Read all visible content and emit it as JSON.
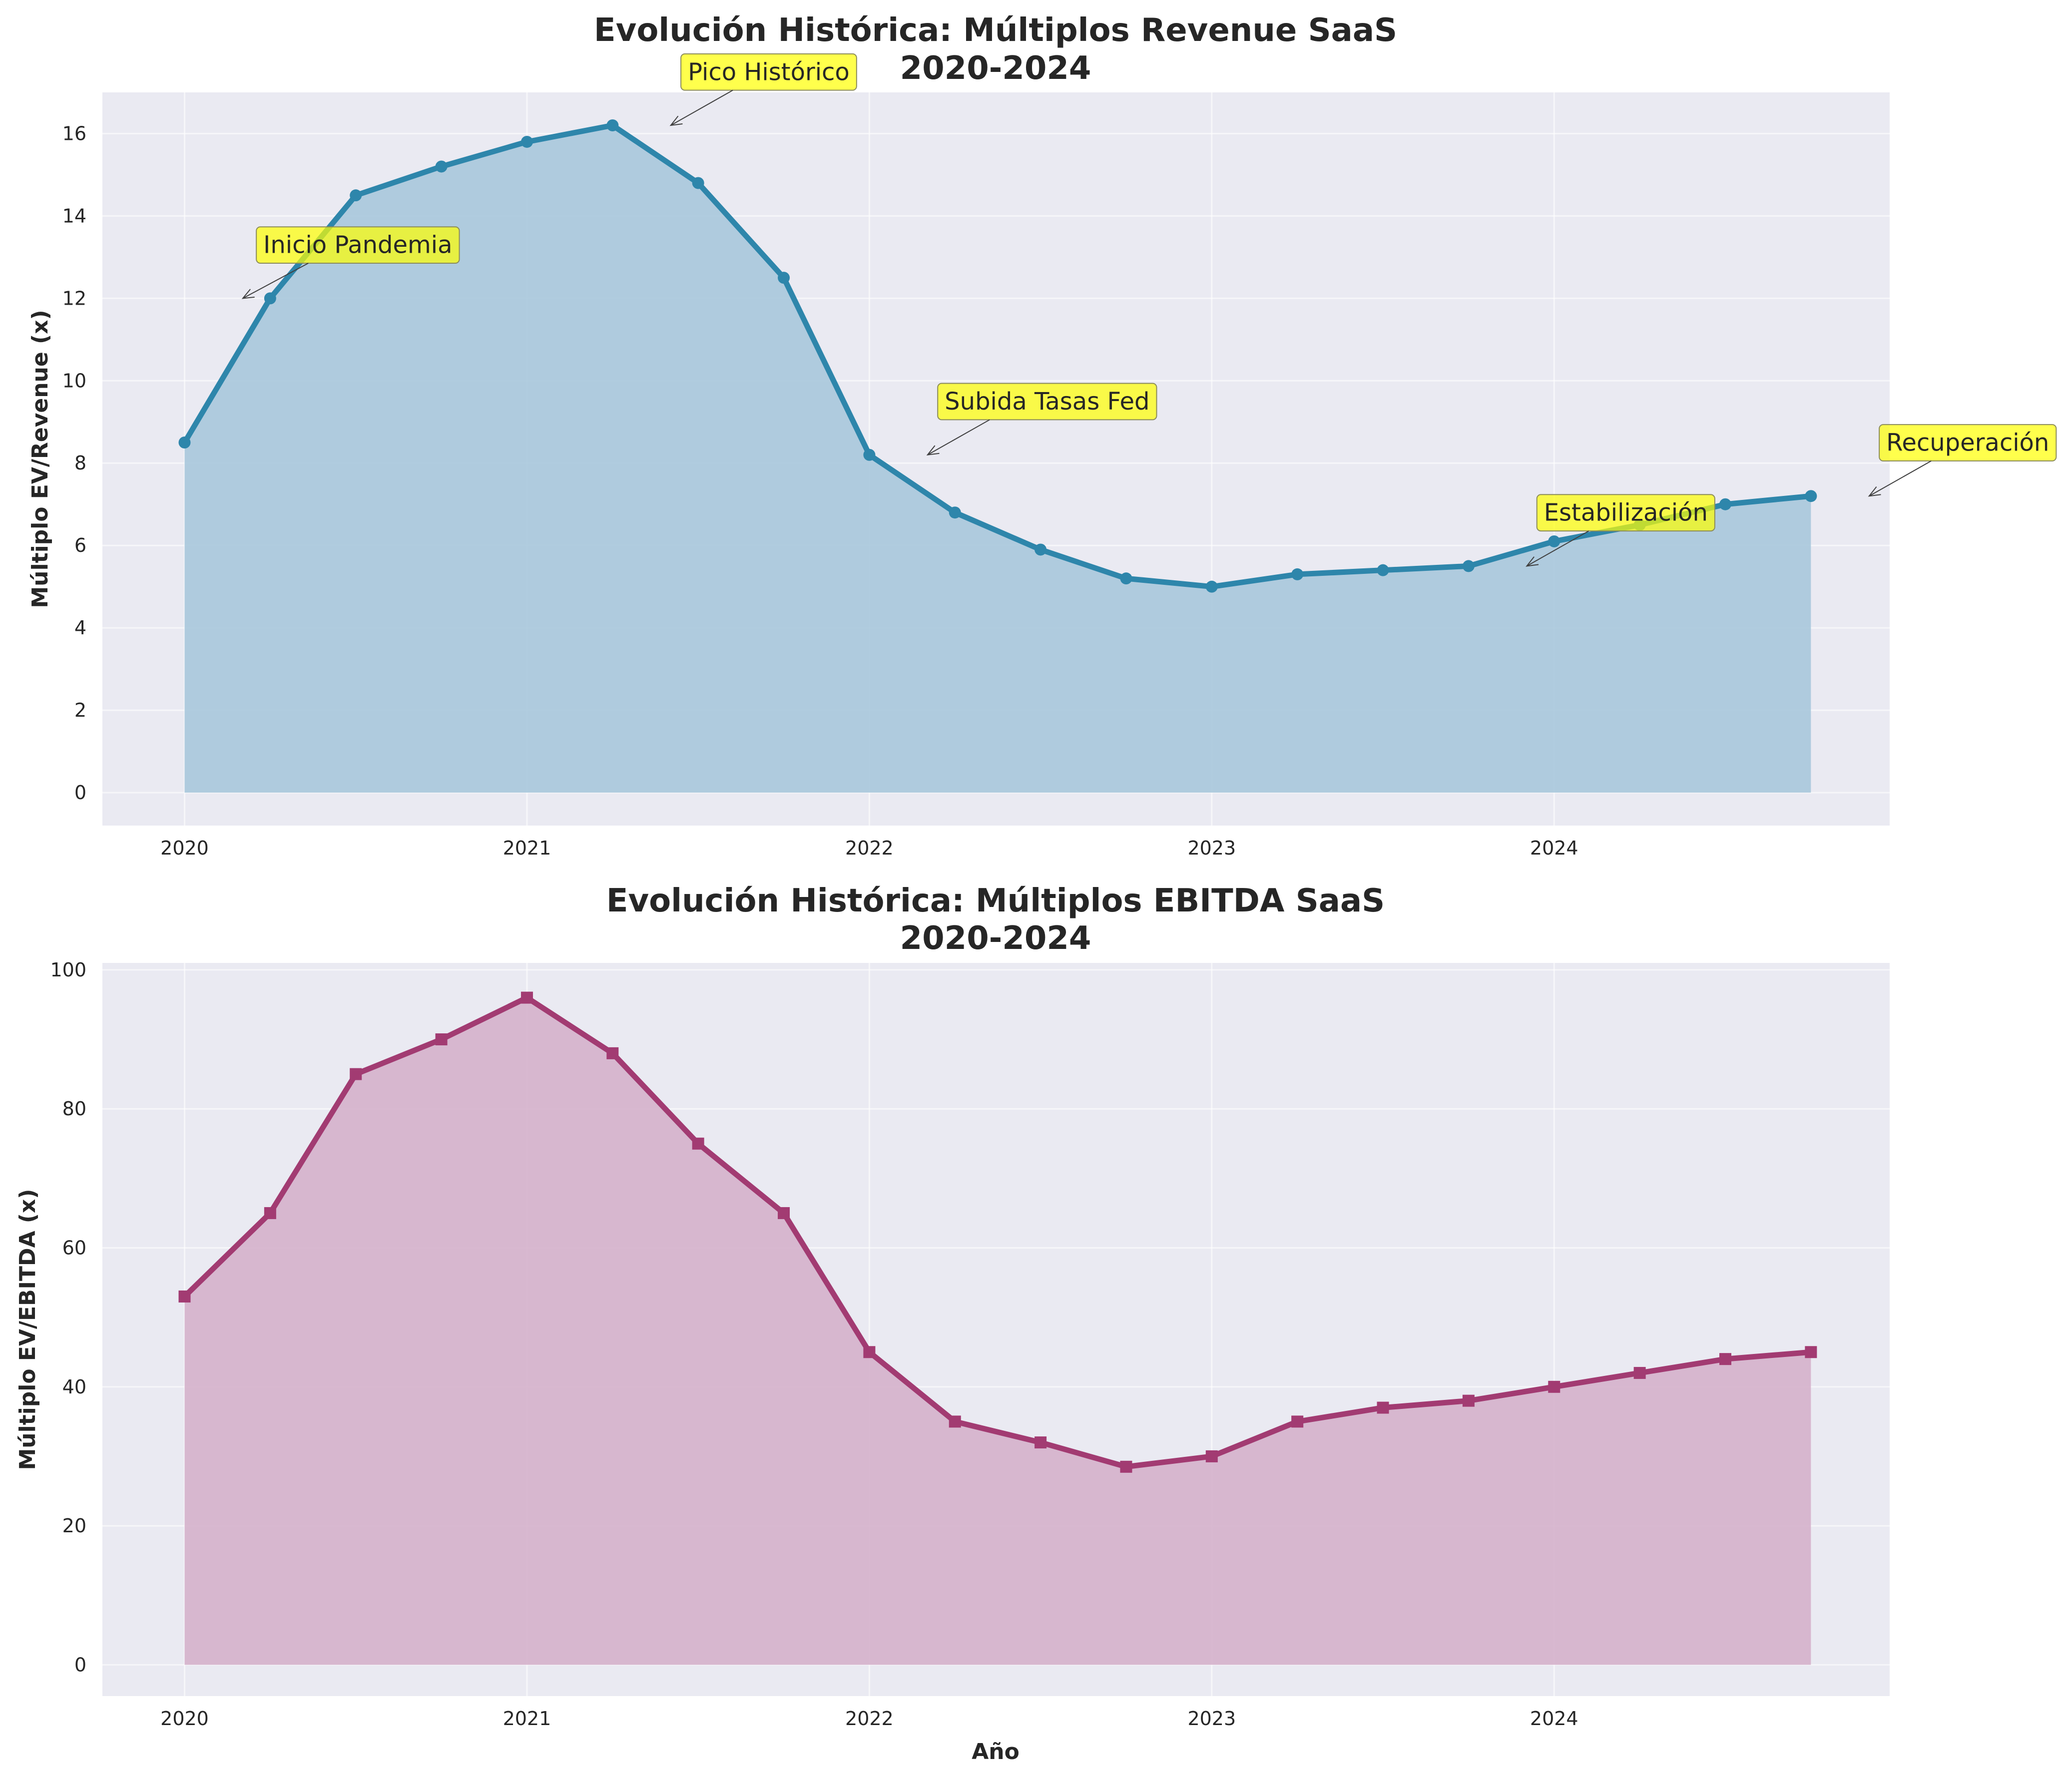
{
  "chart_data": [
    {
      "type": "area",
      "title_line1": "Evolución Histórica: Múltiplos Revenue SaaS",
      "title_line2": "2020-2024",
      "xlabel": "",
      "ylabel": "Múltiplo EV/Revenue (x)",
      "x_ticks": [
        "2020",
        "2021",
        "2022",
        "2023",
        "2024"
      ],
      "x_tick_values": [
        2020,
        2021,
        2022,
        2023,
        2024
      ],
      "y_ticks": [
        "0",
        "2",
        "4",
        "6",
        "8",
        "10",
        "12",
        "14",
        "16"
      ],
      "y_tick_values": [
        0,
        2,
        4,
        6,
        8,
        10,
        12,
        14,
        16
      ],
      "xlim": [
        2019.76,
        2024.98
      ],
      "ylim": [
        -0.8,
        17
      ],
      "grid": true,
      "color": "#2E86AB",
      "fill_color": "#A9C8DC",
      "marker": "circle",
      "x": [
        2020.0,
        2020.25,
        2020.5,
        2020.75,
        2021.0,
        2021.25,
        2021.5,
        2021.75,
        2022.0,
        2022.25,
        2022.5,
        2022.75,
        2023.0,
        2023.25,
        2023.5,
        2023.75,
        2024.0,
        2024.25,
        2024.5,
        2024.75
      ],
      "values": [
        8.5,
        12.0,
        14.5,
        15.2,
        15.8,
        16.2,
        14.8,
        12.5,
        8.2,
        6.8,
        5.9,
        5.2,
        5.0,
        5.3,
        5.4,
        5.5,
        6.1,
        6.5,
        7.0,
        7.2
      ],
      "annotations": [
        {
          "text": "Inicio Pandemia",
          "x": 2020.17,
          "y": 12.0,
          "text_x": 2020.23,
          "text_y": 13.1
        },
        {
          "text": "Pico Histórico",
          "x": 2021.42,
          "y": 16.2,
          "text_x": 2021.47,
          "text_y": 17.3
        },
        {
          "text": "Subida Tasas Fed",
          "x": 2022.17,
          "y": 8.2,
          "text_x": 2022.22,
          "text_y": 9.3
        },
        {
          "text": "Estabilización",
          "x": 2023.92,
          "y": 5.5,
          "text_x": 2023.97,
          "text_y": 6.6
        },
        {
          "text": "Recuperación",
          "x": 2024.92,
          "y": 7.2,
          "text_x": 2024.97,
          "text_y": 8.3
        }
      ]
    },
    {
      "type": "area",
      "title_line1": "Evolución Histórica: Múltiplos EBITDA SaaS",
      "title_line2": "2020-2024",
      "xlabel": "Año",
      "ylabel": "Múltiplo EV/EBITDA (x)",
      "x_ticks": [
        "2020",
        "2021",
        "2022",
        "2023",
        "2024"
      ],
      "x_tick_values": [
        2020,
        2021,
        2022,
        2023,
        2024
      ],
      "y_ticks": [
        "0",
        "20",
        "40",
        "60",
        "80",
        "100"
      ],
      "y_tick_values": [
        0,
        20,
        40,
        60,
        80,
        100
      ],
      "xlim": [
        2019.76,
        2024.98
      ],
      "ylim": [
        -4.5,
        101
      ],
      "grid": true,
      "color": "#A23B72",
      "fill_color": "#D5B1CB",
      "marker": "square",
      "x": [
        2020.0,
        2020.25,
        2020.5,
        2020.75,
        2021.0,
        2021.25,
        2021.5,
        2021.75,
        2022.0,
        2022.25,
        2022.5,
        2022.75,
        2023.0,
        2023.25,
        2023.5,
        2023.75,
        2024.0,
        2024.25,
        2024.5,
        2024.75
      ],
      "values": [
        53,
        65,
        85,
        90,
        96,
        88,
        75,
        65,
        45,
        35,
        32,
        28.5,
        30,
        35,
        37,
        38,
        40,
        42,
        44,
        45
      ],
      "annotations": []
    }
  ]
}
